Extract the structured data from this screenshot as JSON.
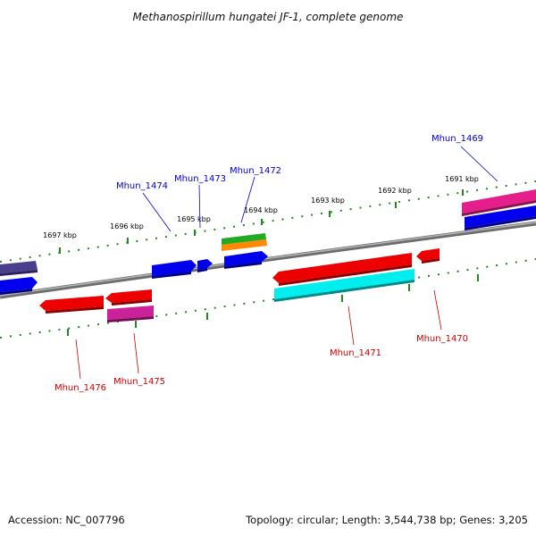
{
  "title": "Methanospirillum hungatei JF-1, complete genome",
  "footer": {
    "accession": "Accession: NC_007796",
    "summary": "Topology: circular; Length: 3,544,738 bp; Genes: 3,205"
  },
  "ticks": [
    "1697 kbp",
    "1696 kbp",
    "1695 kbp",
    "1694 kbp",
    "1693 kbp",
    "1692 kbp",
    "1691 kbp"
  ],
  "genes_forward": [
    "Mhun_1474",
    "Mhun_1473",
    "Mhun_1472",
    "Mhun_1469"
  ],
  "genes_reverse": [
    "Mhun_1476",
    "Mhun_1475",
    "Mhun_1471",
    "Mhun_1470"
  ],
  "colors": {
    "forward_label": "#0000cc",
    "reverse_label": "#cc0000",
    "backbone": "#888888",
    "ruler": "#228822"
  }
}
